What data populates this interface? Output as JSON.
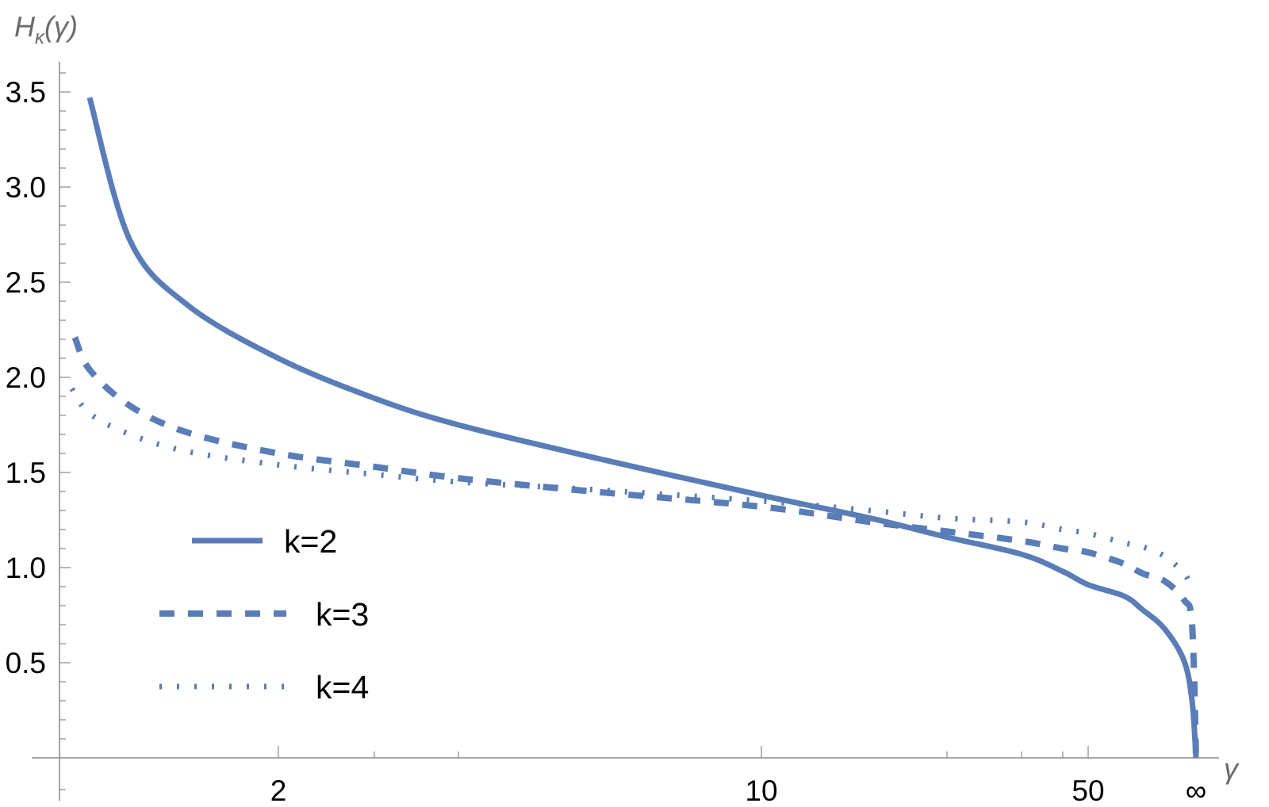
{
  "chart_data": {
    "type": "line",
    "title": "",
    "xlabel": "γ",
    "ylabel": "Hκ(γ)",
    "ylabel_parts": {
      "main": "H",
      "sub": "κ",
      "arg": "(γ)"
    },
    "x_scale": "compressed (log-like, ∞ mapped to finite endpoint)",
    "x_ticks": [
      {
        "value": 2,
        "label": "2"
      },
      {
        "value": 10,
        "label": "10"
      },
      {
        "value": 50,
        "label": "50"
      },
      {
        "value": "inf",
        "label": "∞"
      }
    ],
    "x_minor_ticks": [
      3,
      4,
      20,
      30,
      40
    ],
    "y_ticks": [
      {
        "value": 0.5,
        "label": "0.5"
      },
      {
        "value": 1.0,
        "label": "1.0"
      },
      {
        "value": 1.5,
        "label": "1.5"
      },
      {
        "value": 2.0,
        "label": "2.0"
      },
      {
        "value": 2.5,
        "label": "2.5"
      },
      {
        "value": 3.0,
        "label": "3.0"
      },
      {
        "value": 3.5,
        "label": "3.5"
      }
    ],
    "ylim": [
      0,
      3.65
    ],
    "grid": false,
    "legend_placement": "lower-left",
    "line_color": "#5a7db8",
    "series": [
      {
        "name": "k=2",
        "style": "solid",
        "x": [
          1.1,
          1.25,
          1.5,
          2,
          3,
          4,
          6,
          10,
          15,
          20,
          30,
          40,
          50,
          75,
          100,
          170,
          450,
          1350,
          "inf"
        ],
        "y": [
          3.47,
          2.72,
          2.38,
          2.1,
          1.89,
          1.75,
          1.58,
          1.38,
          1.26,
          1.16,
          1.07,
          0.98,
          0.91,
          0.85,
          0.78,
          0.68,
          0.51,
          0.3,
          0.0
        ]
      },
      {
        "name": "k=3",
        "style": "dashed",
        "x": [
          1.05,
          1.1,
          1.25,
          1.5,
          2,
          3,
          4,
          6,
          10,
          15,
          20,
          30,
          40,
          50,
          75,
          100,
          170,
          450,
          1350,
          "inf"
        ],
        "y": [
          2.21,
          2.04,
          1.85,
          1.71,
          1.6,
          1.53,
          1.47,
          1.4,
          1.32,
          1.24,
          1.19,
          1.14,
          1.1,
          1.08,
          1.02,
          0.97,
          0.93,
          0.83,
          0.7,
          0.0
        ]
      },
      {
        "name": "k=4",
        "style": "dotted",
        "x": [
          1.04,
          1.1,
          1.25,
          1.5,
          2,
          3,
          4,
          6,
          10,
          15,
          20,
          30,
          40,
          50,
          75,
          100,
          170,
          450,
          1350
        ],
        "y": [
          1.94,
          1.81,
          1.7,
          1.61,
          1.54,
          1.49,
          1.45,
          1.41,
          1.35,
          1.3,
          1.26,
          1.24,
          1.2,
          1.18,
          1.13,
          1.11,
          1.06,
          0.97,
          0.89
        ]
      }
    ]
  }
}
